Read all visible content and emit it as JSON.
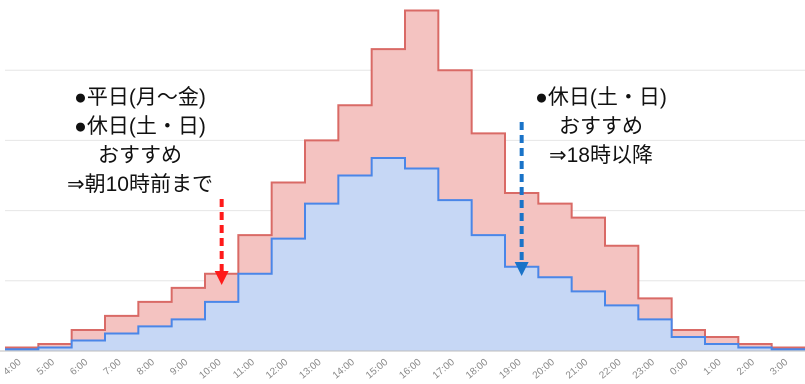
{
  "chart_data": {
    "type": "area",
    "step": true,
    "title": "",
    "xlabel": "",
    "ylabel": "",
    "x": [
      "4:00",
      "5:00",
      "6:00",
      "7:00",
      "8:00",
      "9:00",
      "10:00",
      "11:00",
      "12:00",
      "13:00",
      "14:00",
      "15:00",
      "16:00",
      "17:00",
      "18:00",
      "19:00",
      "20:00",
      "21:00",
      "22:00",
      "23:00",
      "0:00",
      "1:00",
      "2:00",
      "3:00"
    ],
    "ylim": [
      0,
      100
    ],
    "grid": true,
    "series": [
      {
        "color": "#f4c3c1",
        "line_color": "#d96a66",
        "values": [
          1,
          2,
          6,
          10,
          14,
          18,
          22,
          33,
          48,
          60,
          70,
          86,
          97,
          80,
          62,
          45,
          42,
          38,
          30,
          15,
          6,
          4,
          2,
          1
        ]
      },
      {
        "color": "#c6d7f5",
        "line_color": "#4a86e8",
        "values": [
          0.5,
          1,
          3,
          5,
          7,
          9,
          14,
          22,
          32,
          42,
          50,
          55,
          52,
          43,
          33,
          24,
          21,
          17,
          13,
          9,
          4,
          2,
          1,
          0.5
        ]
      }
    ],
    "annotations": [
      {
        "lines": [
          "●平日(月～金)",
          "●休日(土・日)",
          "おすすめ",
          "⇒朝10時前まで"
        ],
        "arrow_x": "10:00",
        "arrow_color": "#ff1a1a"
      },
      {
        "lines": [
          "●休日(土・日)",
          "おすすめ",
          "⇒18時以降"
        ],
        "arrow_x": "19:00",
        "arrow_color": "#1a73c8"
      }
    ]
  }
}
